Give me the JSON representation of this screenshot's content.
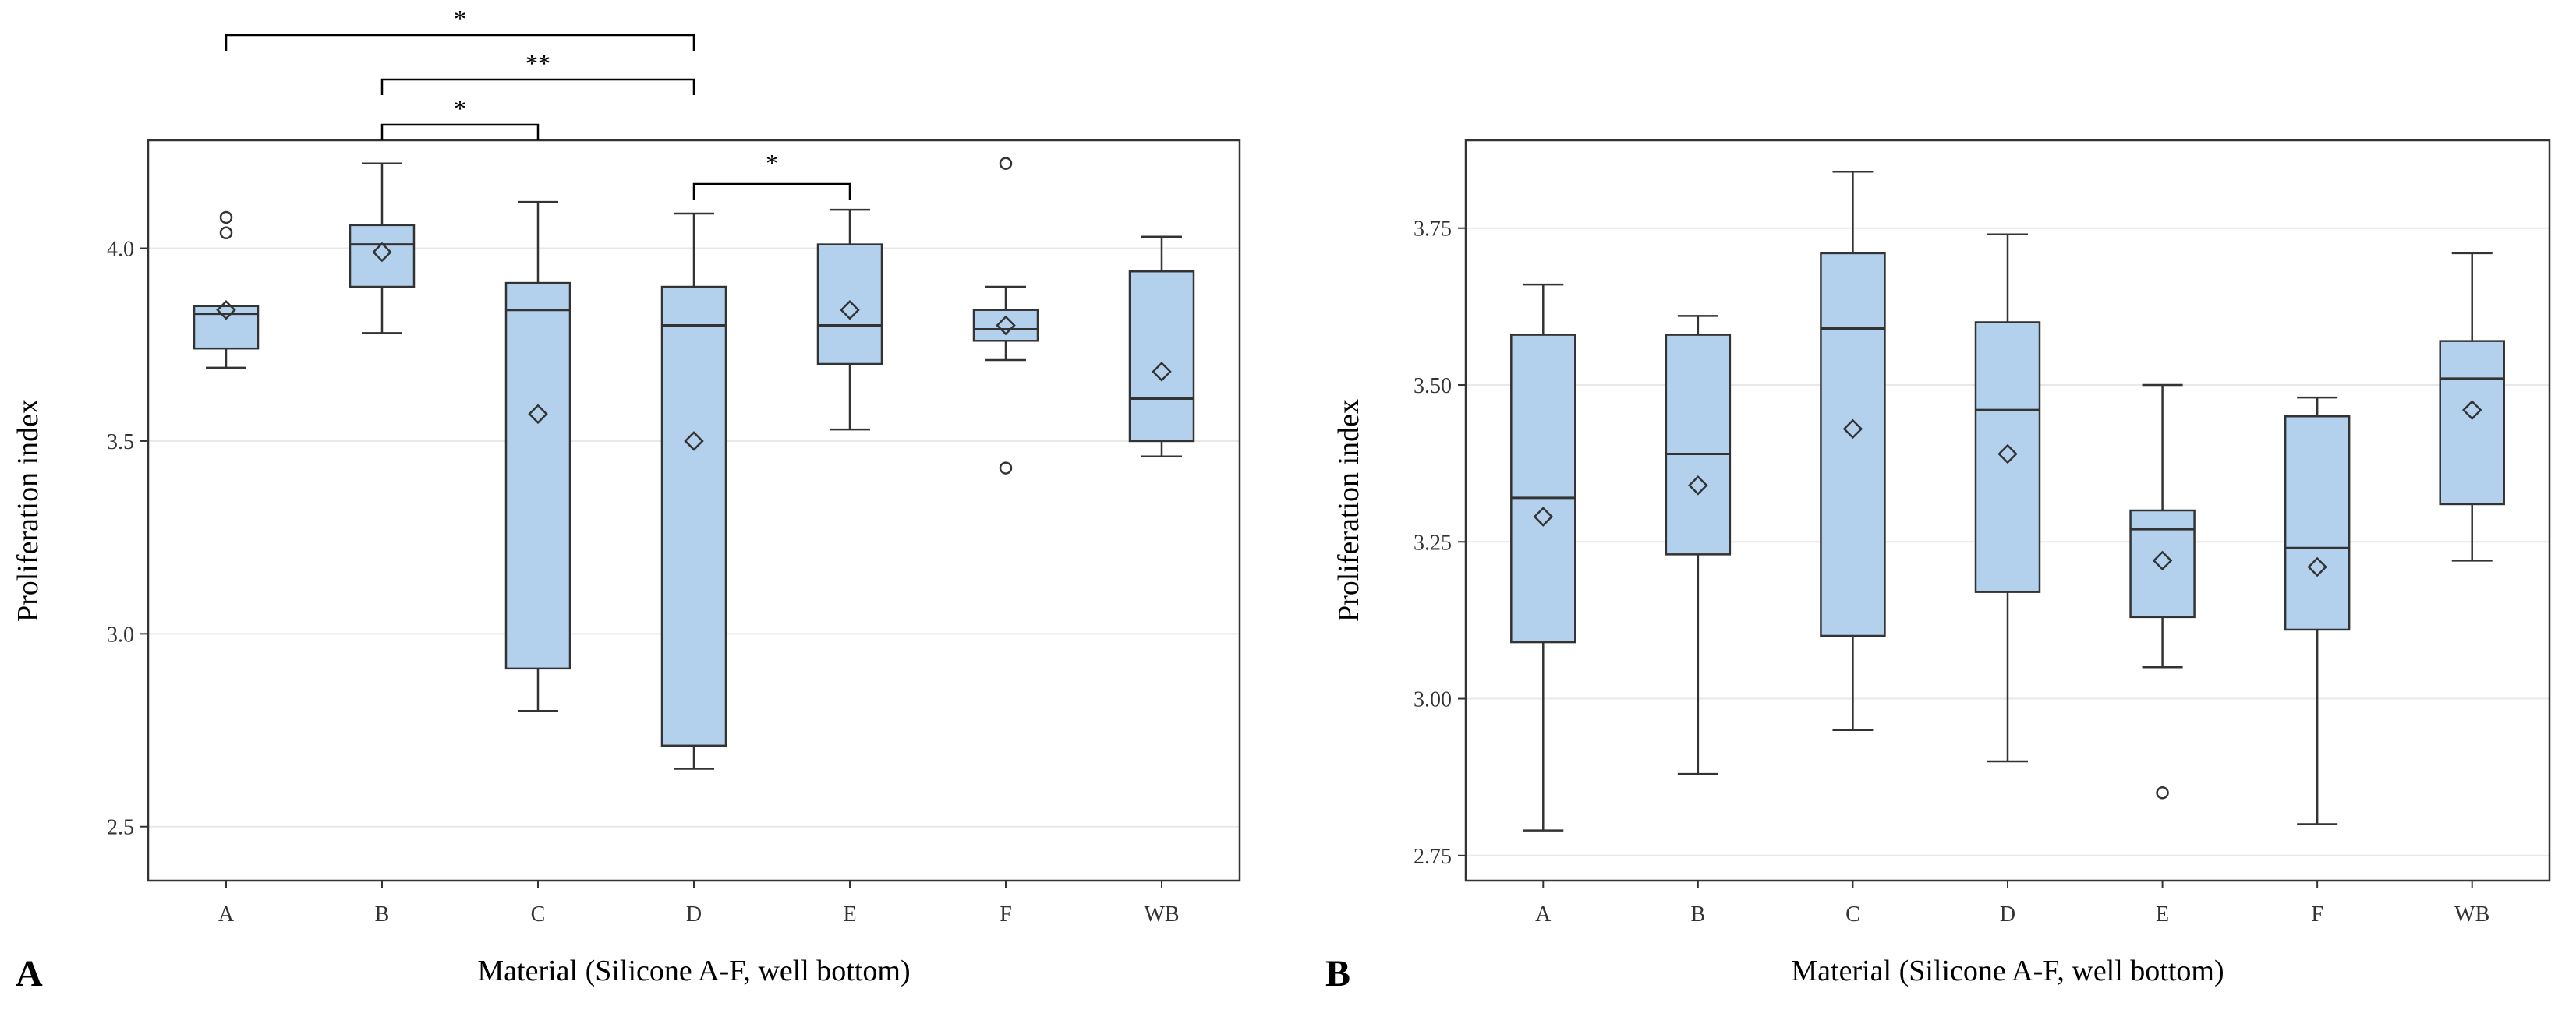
{
  "figure": {
    "box_fill": "#b3d1ec",
    "box_stroke": "#333333",
    "grid_color": "#e8e8e8"
  },
  "chart_data": [
    {
      "type": "box",
      "panel_label": "A",
      "xlabel": "Material (Silicone A-F, well bottom)",
      "ylabel": "Proliferation index",
      "categories": [
        "A",
        "B",
        "C",
        "D",
        "E",
        "F",
        "WB"
      ],
      "ylim": [
        2.36,
        4.28
      ],
      "yticks": [
        2.5,
        3.0,
        3.5,
        4.0
      ],
      "ytick_labels": [
        "2.5",
        "3.0",
        "3.5",
        "4.0"
      ],
      "grid": true,
      "boxes": [
        {
          "min": 3.69,
          "q1": 3.74,
          "median": 3.83,
          "q3": 3.85,
          "max": 3.85,
          "mean": 3.84,
          "outliers": [
            4.04,
            4.08
          ]
        },
        {
          "min": 3.78,
          "q1": 3.9,
          "median": 4.01,
          "q3": 4.06,
          "max": 4.22,
          "mean": 3.99,
          "outliers": []
        },
        {
          "min": 2.8,
          "q1": 2.91,
          "median": 3.84,
          "q3": 3.91,
          "max": 4.12,
          "mean": 3.57,
          "outliers": []
        },
        {
          "min": 2.65,
          "q1": 2.71,
          "median": 3.8,
          "q3": 3.9,
          "max": 4.09,
          "mean": 3.5,
          "outliers": []
        },
        {
          "min": 3.53,
          "q1": 3.7,
          "median": 3.8,
          "q3": 4.01,
          "max": 4.1,
          "mean": 3.84,
          "outliers": []
        },
        {
          "min": 3.71,
          "q1": 3.76,
          "median": 3.79,
          "q3": 3.84,
          "max": 3.9,
          "mean": 3.8,
          "outliers": [
            3.43,
            4.22
          ]
        },
        {
          "min": 3.46,
          "q1": 3.5,
          "median": 3.61,
          "q3": 3.94,
          "max": 4.03,
          "mean": 3.68,
          "outliers": []
        }
      ],
      "significance": [
        {
          "from": "A",
          "to": "D",
          "label": "*"
        },
        {
          "from": "B",
          "to": "D",
          "label": "**"
        },
        {
          "from": "B",
          "to": "C",
          "label": "*"
        },
        {
          "from": "D",
          "to": "E",
          "label": "*"
        }
      ]
    },
    {
      "type": "box",
      "panel_label": "B",
      "xlabel": "Material (Silicone A-F, well bottom)",
      "ylabel": "Proliferation index",
      "categories": [
        "A",
        "B",
        "C",
        "D",
        "E",
        "F",
        "WB"
      ],
      "ylim": [
        2.71,
        3.89
      ],
      "yticks": [
        2.75,
        3.0,
        3.25,
        3.5,
        3.75
      ],
      "ytick_labels": [
        "2.75",
        "3.00",
        "3.25",
        "3.50",
        "3.75"
      ],
      "grid": true,
      "boxes": [
        {
          "min": 2.79,
          "q1": 3.09,
          "median": 3.32,
          "q3": 3.58,
          "max": 3.66,
          "mean": 3.29,
          "outliers": []
        },
        {
          "min": 2.88,
          "q1": 3.23,
          "median": 3.39,
          "q3": 3.58,
          "max": 3.61,
          "mean": 3.34,
          "outliers": []
        },
        {
          "min": 2.95,
          "q1": 3.1,
          "median": 3.59,
          "q3": 3.71,
          "max": 3.84,
          "mean": 3.43,
          "outliers": []
        },
        {
          "min": 2.9,
          "q1": 3.17,
          "median": 3.46,
          "q3": 3.6,
          "max": 3.74,
          "mean": 3.39,
          "outliers": []
        },
        {
          "min": 3.05,
          "q1": 3.13,
          "median": 3.27,
          "q3": 3.3,
          "max": 3.5,
          "mean": 3.22,
          "outliers": [
            2.85
          ]
        },
        {
          "min": 2.8,
          "q1": 3.11,
          "median": 3.24,
          "q3": 3.45,
          "max": 3.48,
          "mean": 3.21,
          "outliers": []
        },
        {
          "min": 3.22,
          "q1": 3.31,
          "median": 3.51,
          "q3": 3.57,
          "max": 3.71,
          "mean": 3.46,
          "outliers": []
        }
      ],
      "significance": []
    }
  ]
}
